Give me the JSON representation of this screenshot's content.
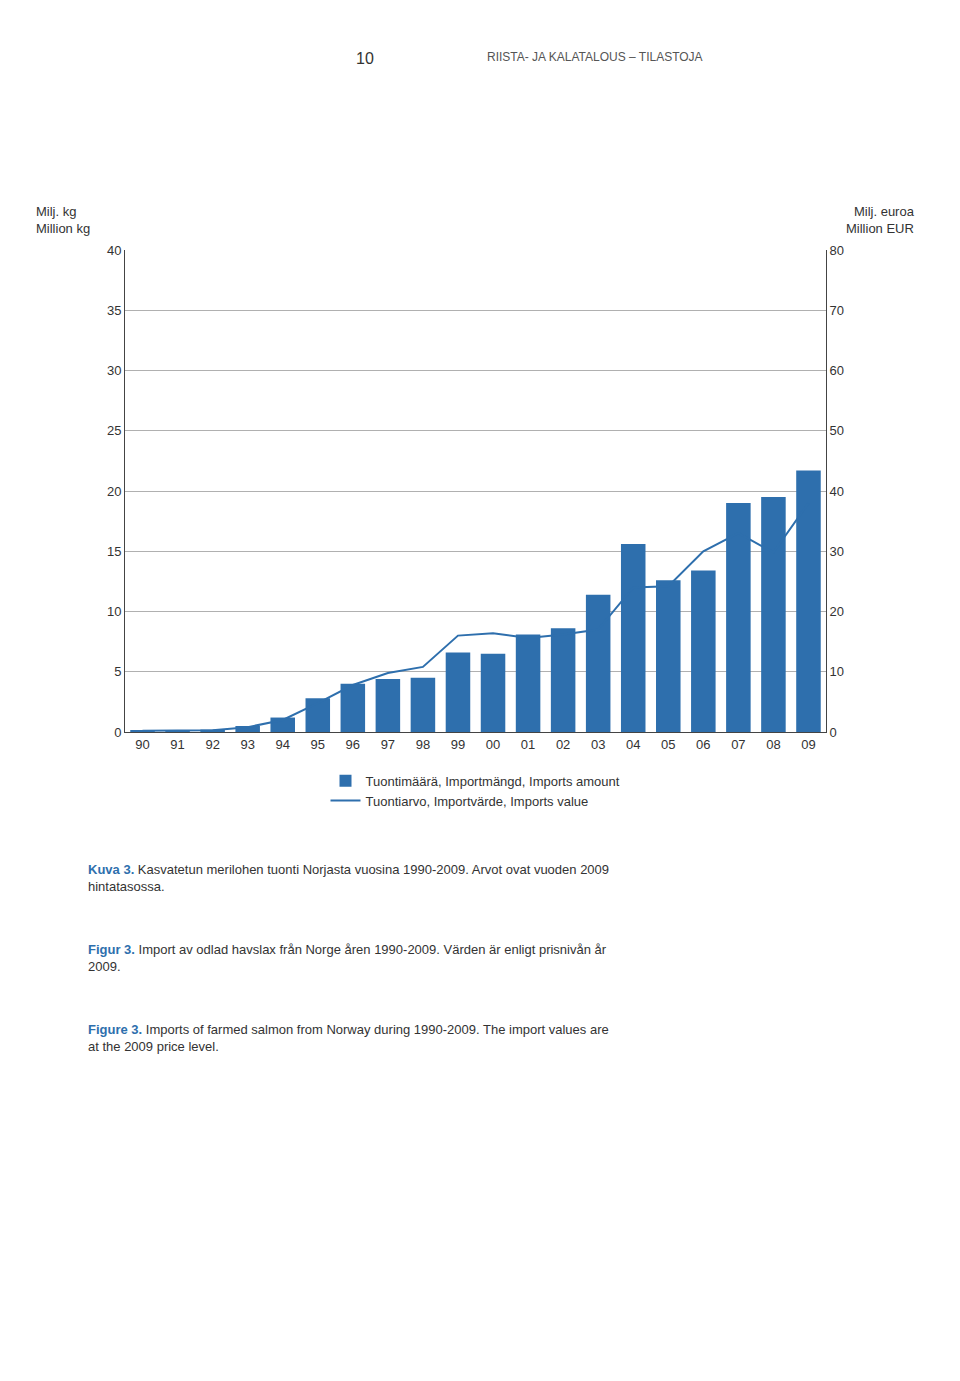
{
  "chart_data": {
    "type": "bar",
    "categories": [
      "90",
      "91",
      "92",
      "93",
      "94",
      "95",
      "96",
      "97",
      "98",
      "99",
      "00",
      "01",
      "02",
      "03",
      "04",
      "05",
      "06",
      "07",
      "08",
      "09"
    ],
    "series": [
      {
        "name": "Tuontimäärä, Importmängd, Imports amount",
        "type": "bar",
        "color": "#2e6fad",
        "values": [
          0.1,
          0.1,
          0.2,
          0.5,
          1.2,
          2.8,
          4.0,
          4.4,
          4.5,
          6.6,
          6.5,
          8.1,
          8.6,
          11.4,
          15.6,
          12.6,
          13.4,
          19.0,
          19.5,
          21.7
        ]
      },
      {
        "name": "Tuontiarvo, Importvärde, Imports value",
        "type": "line",
        "axis": "y2",
        "color": "#2e6fad",
        "values": [
          0.2,
          0.2,
          0.3,
          0.8,
          2.0,
          4.8,
          7.8,
          9.8,
          10.8,
          16.0,
          16.4,
          15.6,
          16.2,
          17.0,
          24.0,
          24.2,
          30.0,
          33.0,
          29.8,
          38.0
        ]
      }
    ],
    "ylabel": "Milj. kg\nMillion kg",
    "y2label": "Milj. euroa\nMillion EUR",
    "ylim": [
      0,
      40
    ],
    "yticks": [
      0,
      5,
      10,
      15,
      20,
      25,
      30,
      35,
      40
    ],
    "y2lim": [
      0,
      80
    ],
    "y2ticks": [
      0,
      10,
      20,
      30,
      40,
      50,
      60,
      70,
      80
    ],
    "grid": true,
    "legend": "bottom",
    "annotations": [
      "10",
      "RIISTA- JA KALATALOUS – TILASTOJA"
    ],
    "captions": [
      {
        "label": "Kuva 3.",
        "text": "Kasvatetun merilohen tuonti Norjasta vuosina 1990-2009. Arvot ovat vuoden 2009\nhintatasossa."
      },
      {
        "label": "Figur 3.",
        "text": "Import av odlad havslax från Norge åren 1990-2009. Värden är enligt prisnivån år\n2009."
      },
      {
        "label": "Figure 3.",
        "text": "Imports of farmed salmon from Norway during 1990-2009. The import values are\nat the 2009 price level."
      }
    ]
  }
}
